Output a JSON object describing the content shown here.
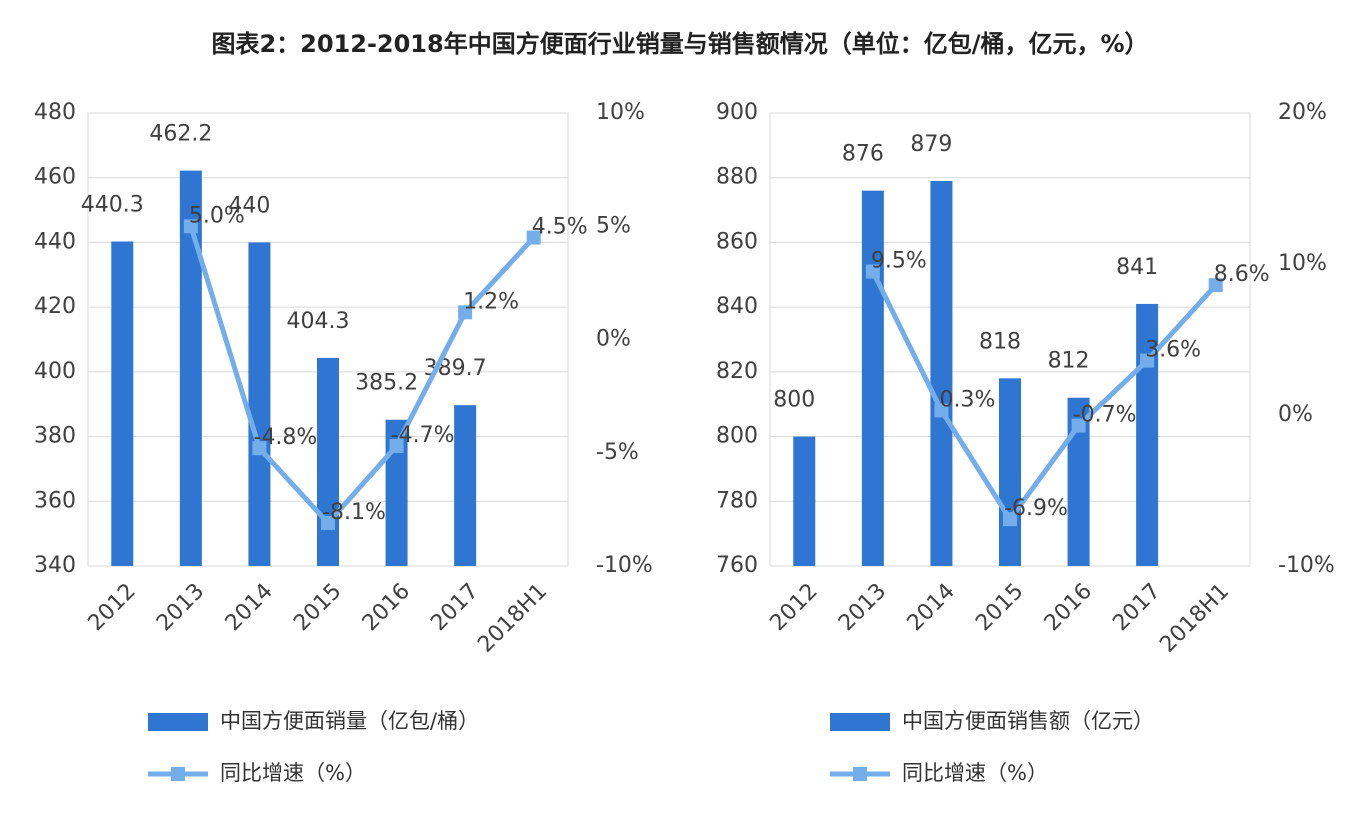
{
  "title": "图表2：2012-2018年中国方便面行业销量与销售额情况（单位：亿包/桶，亿元，%）",
  "chart_data": [
    {
      "type": "bar",
      "categories": [
        "2012",
        "2013",
        "2014",
        "2015",
        "2016",
        "2017",
        "2018H1"
      ],
      "series": [
        {
          "name": "中国方便面销量（亿包/桶）",
          "color": "#2f76d2",
          "values": [
            440.3,
            462.2,
            440,
            404.3,
            385.2,
            389.7,
            null
          ]
        },
        {
          "name": "同比增速（%）",
          "color": "#74aeea",
          "type": "line",
          "axis": "y2",
          "values": [
            null,
            5.0,
            -4.8,
            -8.1,
            -4.7,
            1.2,
            4.5
          ],
          "value_labels": [
            null,
            "5.0%",
            "-4.8%",
            "-8.1%",
            "-4.7%",
            "1.2%",
            "4.5%"
          ]
        }
      ],
      "ylim": [
        340,
        480
      ],
      "yticks": [
        340,
        360,
        380,
        400,
        420,
        440,
        460,
        480
      ],
      "y2lim": [
        -10,
        10
      ],
      "y2ticks": [
        {
          "value": -10,
          "label": "-10%"
        },
        {
          "value": -5,
          "label": "-5%"
        },
        {
          "value": 0,
          "label": "0%"
        },
        {
          "value": 5,
          "label": "5%"
        },
        {
          "value": 10,
          "label": "10%"
        }
      ],
      "grid": true
    },
    {
      "type": "bar",
      "categories": [
        "2012",
        "2013",
        "2014",
        "2015",
        "2016",
        "2017",
        "2018H1"
      ],
      "series": [
        {
          "name": "中国方便面销售额（亿元）",
          "color": "#2f76d2",
          "values": [
            800,
            876,
            879,
            818,
            812,
            841,
            null
          ]
        },
        {
          "name": "同比增速（%）",
          "color": "#74aeea",
          "type": "line",
          "axis": "y2",
          "values": [
            null,
            9.5,
            0.3,
            -6.9,
            -0.7,
            3.6,
            8.6
          ],
          "value_labels": [
            null,
            "9.5%",
            "0.3%",
            "-6.9%",
            "-0.7%",
            "3.6%",
            "8.6%"
          ]
        }
      ],
      "ylim": [
        760,
        900
      ],
      "yticks": [
        760,
        780,
        800,
        820,
        840,
        860,
        880,
        900
      ],
      "y2lim": [
        -10,
        20
      ],
      "y2ticks": [
        {
          "value": -10,
          "label": "-10%"
        },
        {
          "value": 0,
          "label": "0%"
        },
        {
          "value": 10,
          "label": "10%"
        },
        {
          "value": 20,
          "label": "20%"
        }
      ],
      "grid": true
    }
  ]
}
